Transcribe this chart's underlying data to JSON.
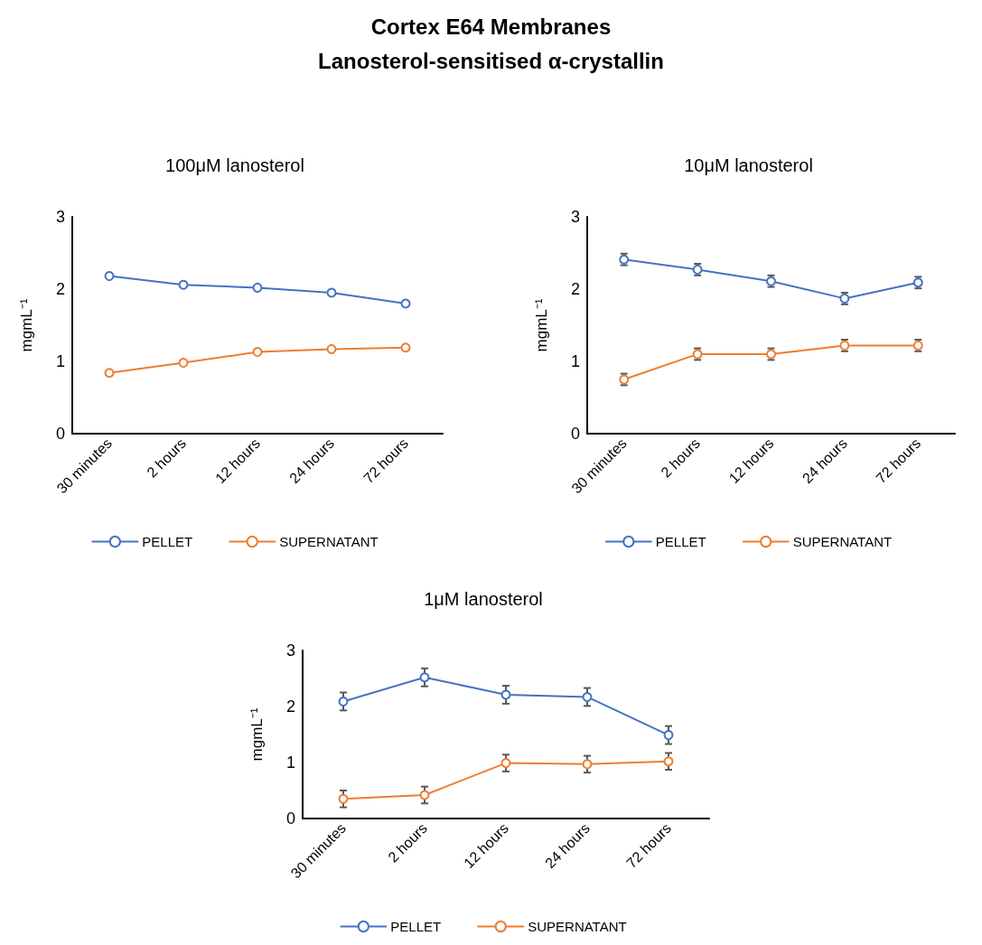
{
  "chart_data": [
    {
      "type": "other",
      "title": "Cortex E64 Membranes",
      "subtitle": "Lanosterol-sensitised α-crystallin"
    },
    {
      "type": "line",
      "title": "100μM lanosterol",
      "ylabel": "mgmL⁻¹",
      "categories": [
        "30 minutes",
        "2 hours",
        "12 hours",
        "24 hours",
        "72 hours"
      ],
      "ylim": [
        0,
        3
      ],
      "yticks": [
        0,
        1,
        2,
        3
      ],
      "grid": false,
      "legend": "bottom",
      "marker": "circle",
      "line_style": "solid",
      "series": [
        {
          "name": "PELLET",
          "color": "#4472c4",
          "values": [
            2.18,
            2.06,
            2.02,
            1.95,
            1.8
          ]
        },
        {
          "name": "SUPERNATANT",
          "color": "#ed7d31",
          "values": [
            0.84,
            0.98,
            1.13,
            1.17,
            1.19
          ]
        }
      ]
    },
    {
      "type": "line",
      "title": "10μM lanosterol",
      "ylabel": "mgmL⁻¹",
      "categories": [
        "30 minutes",
        "2 hours",
        "12 hours",
        "24 hours",
        "72 hours"
      ],
      "ylim": [
        0,
        3
      ],
      "yticks": [
        0,
        1,
        2,
        3
      ],
      "grid": false,
      "legend": "bottom",
      "marker": "circle",
      "line_style": "solid",
      "series": [
        {
          "name": "PELLET",
          "color": "#4472c4",
          "values": [
            2.41,
            2.27,
            2.11,
            1.87,
            2.09
          ],
          "errors": [
            0.08,
            0.08,
            0.08,
            0.08,
            0.08
          ]
        },
        {
          "name": "SUPERNATANT",
          "color": "#ed7d31",
          "values": [
            0.75,
            1.1,
            1.1,
            1.22,
            1.22
          ],
          "errors": [
            0.08,
            0.08,
            0.08,
            0.08,
            0.08
          ]
        }
      ]
    },
    {
      "type": "line",
      "title": "1μM lanosterol",
      "ylabel": "mgmL⁻¹",
      "categories": [
        "30 minutes",
        "2 hours",
        "12 hours",
        "24 hours",
        "72 hours"
      ],
      "ylim": [
        0,
        3
      ],
      "yticks": [
        0,
        1,
        2,
        3
      ],
      "grid": false,
      "legend": "bottom",
      "marker": "circle",
      "line_style": "solid",
      "series": [
        {
          "name": "PELLET",
          "color": "#4472c4",
          "values": [
            2.09,
            2.52,
            2.21,
            2.17,
            1.49
          ],
          "errors": [
            0.16,
            0.16,
            0.16,
            0.16,
            0.16
          ]
        },
        {
          "name": "SUPERNATANT",
          "color": "#ed7d31",
          "values": [
            0.35,
            0.42,
            0.99,
            0.97,
            1.02
          ],
          "errors": [
            0.15,
            0.15,
            0.15,
            0.15,
            0.15
          ]
        }
      ]
    }
  ]
}
